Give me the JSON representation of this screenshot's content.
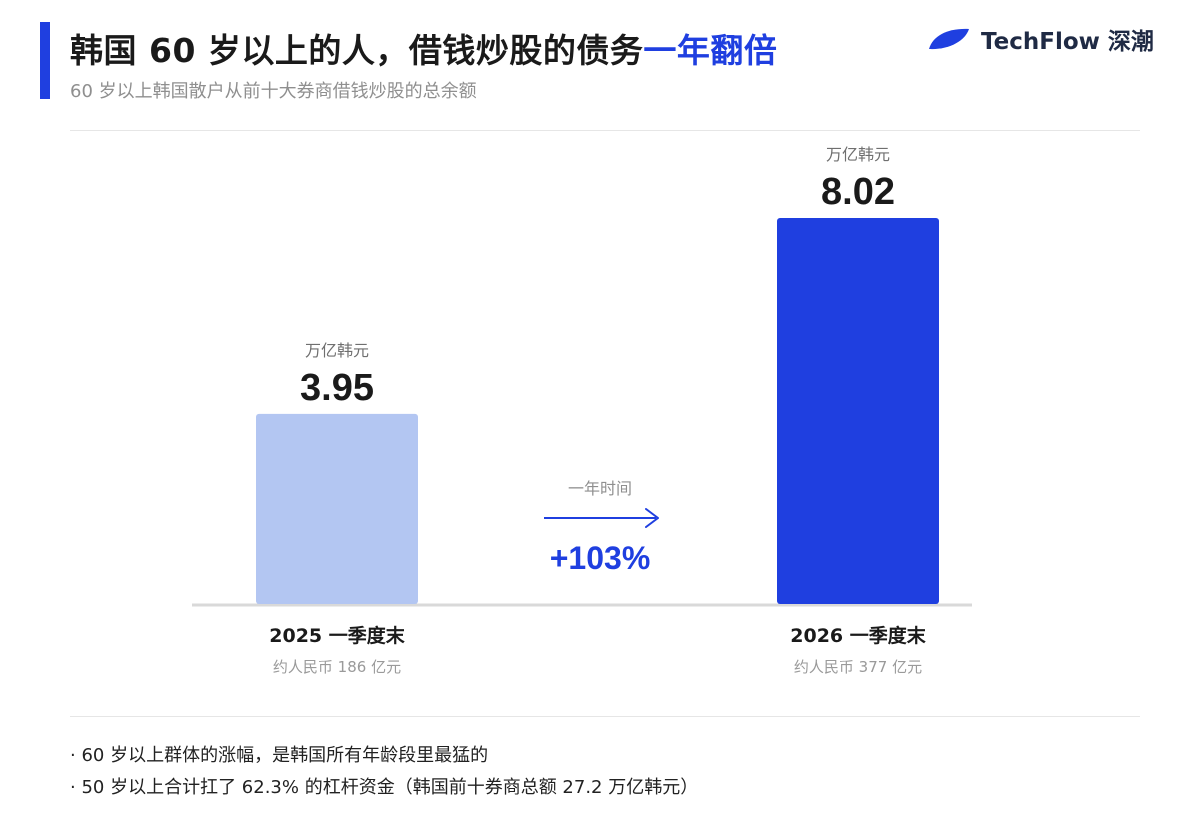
{
  "header": {
    "title_main": "韩国 60 岁以上的人，借钱炒股的债务",
    "title_highlight": "一年翻倍",
    "subtitle": "60 岁以上韩国散户从前十大券商借钱炒股的总余额"
  },
  "brand": {
    "name": "TechFlow 深潮",
    "logo_icon": "leaf-logo-icon"
  },
  "colors": {
    "accent": "#1f3fe0",
    "bar_2025": "#b3c6f2",
    "bar_2026": "#1f3fe0",
    "text_dark": "#1a1a1a",
    "text_muted": "#8f8f8f"
  },
  "chart_data": {
    "type": "bar",
    "categories": [
      "2025 一季度末",
      "2026 一季度末"
    ],
    "values": [
      3.95,
      8.02
    ],
    "value_labels": [
      "3.95",
      "8.02"
    ],
    "unit": "万亿韩元",
    "sublabels": [
      "约人民币 186 亿元",
      "约人民币 377 亿元"
    ],
    "annotation": {
      "label": "一年时间",
      "change": "+103%"
    },
    "ylim": [
      0,
      8.02
    ],
    "grid": false,
    "legend": "none"
  },
  "notes": [
    "· 60 岁以上群体的涨幅，是韩国所有年龄段里最猛的",
    "· 50 岁以上合计扛了 62.3% 的杠杆资金（韩国前十券商总额 27.2 万亿韩元）"
  ]
}
